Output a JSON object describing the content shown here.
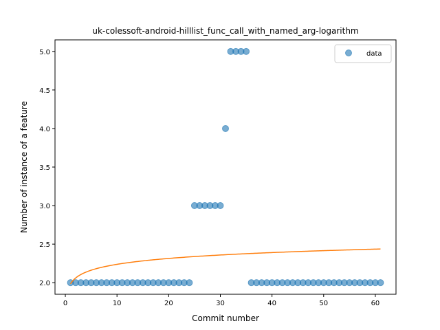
{
  "chart_data": {
    "type": "scatter",
    "title": "uk-colessoft-android-hilllist_func_call_with_named_arg-logarithm",
    "xlabel": "Commit number",
    "ylabel": "Number of instance of a feature",
    "xlim": [
      -2,
      64
    ],
    "ylim": [
      1.85,
      5.15
    ],
    "xticks": [
      0,
      10,
      20,
      30,
      40,
      50,
      60
    ],
    "yticks": [
      2.0,
      2.5,
      3.0,
      3.5,
      4.0,
      4.5,
      5.0
    ],
    "ytick_labels": [
      "2.0",
      "2.5",
      "3.0",
      "3.5",
      "4.0",
      "4.5",
      "5.0"
    ],
    "legend": {
      "position": "top-right",
      "entries": [
        "data"
      ]
    },
    "colors": {
      "points": "#1f77b4",
      "fit": "#ff7f0e"
    },
    "series": [
      {
        "name": "data",
        "kind": "scatter",
        "x": [
          1,
          2,
          3,
          4,
          5,
          6,
          7,
          8,
          9,
          10,
          11,
          12,
          13,
          14,
          15,
          16,
          17,
          18,
          19,
          20,
          21,
          22,
          23,
          24,
          25,
          26,
          27,
          28,
          29,
          30,
          31,
          32,
          33,
          34,
          35,
          36,
          37,
          38,
          39,
          40,
          41,
          42,
          43,
          44,
          45,
          46,
          47,
          48,
          49,
          50,
          51,
          52,
          53,
          54,
          55,
          56,
          57,
          58,
          59,
          60,
          61
        ],
        "y": [
          2,
          2,
          2,
          2,
          2,
          2,
          2,
          2,
          2,
          2,
          2,
          2,
          2,
          2,
          2,
          2,
          2,
          2,
          2,
          2,
          2,
          2,
          2,
          2,
          3,
          3,
          3,
          3,
          3,
          3,
          4,
          5,
          5,
          5,
          5,
          2,
          2,
          2,
          2,
          2,
          2,
          2,
          2,
          2,
          2,
          2,
          2,
          2,
          2,
          2,
          2,
          2,
          2,
          2,
          2,
          2,
          2,
          2,
          2,
          2,
          2
        ]
      },
      {
        "kind": "line",
        "fit": "logarithmic",
        "a": 1.985,
        "b": 0.11,
        "x_range": [
          1,
          61
        ]
      }
    ]
  }
}
